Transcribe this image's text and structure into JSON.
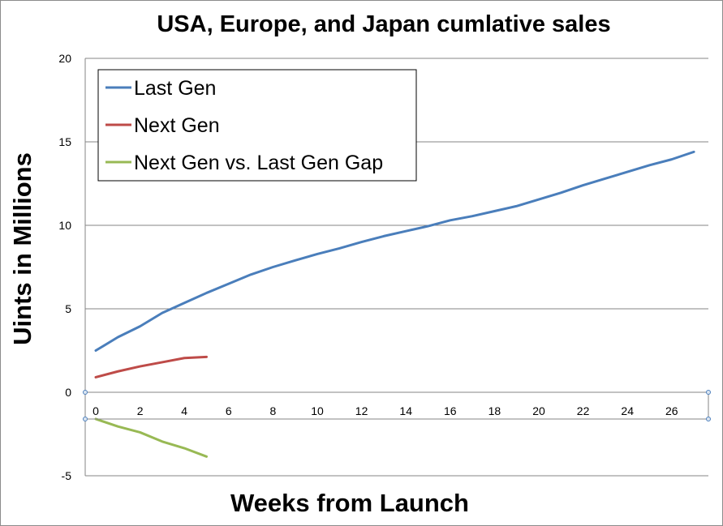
{
  "chart_data": {
    "type": "line",
    "title": "USA, Europe, and Japan cumlative sales",
    "xlabel": "Weeks from Launch",
    "ylabel": "Uints in Millions",
    "xlim": [
      0,
      28
    ],
    "ylim": [
      -5,
      20
    ],
    "x_ticks": [
      "0",
      "2",
      "4",
      "6",
      "8",
      "10",
      "12",
      "14",
      "16",
      "18",
      "20",
      "22",
      "24",
      "26"
    ],
    "y_ticks": [
      "-5",
      "0",
      "5",
      "10",
      "15",
      "20"
    ],
    "grid": "horizontal",
    "legend_position": "top-left",
    "series": [
      {
        "name": "Last Gen",
        "color": "#4a7ebb",
        "x": [
          0,
          1,
          2,
          3,
          4,
          5,
          6,
          7,
          8,
          9,
          10,
          11,
          12,
          13,
          14,
          15,
          16,
          17,
          18,
          19,
          20,
          21,
          22,
          23,
          24,
          25,
          26,
          27
        ],
        "values": [
          2.5,
          3.3,
          3.95,
          4.75,
          5.35,
          5.95,
          6.5,
          7.05,
          7.5,
          7.9,
          8.28,
          8.62,
          9.0,
          9.35,
          9.65,
          9.95,
          10.3,
          10.55,
          10.85,
          11.15,
          11.55,
          11.95,
          12.4,
          12.8,
          13.2,
          13.6,
          13.95,
          14.4
        ]
      },
      {
        "name": "Next Gen",
        "color": "#be4b48",
        "x": [
          0,
          1,
          2,
          3,
          4,
          5
        ],
        "values": [
          0.9,
          1.25,
          1.55,
          1.8,
          2.05,
          2.12
        ]
      },
      {
        "name": "Next Gen vs. Last Gen Gap",
        "color": "#98b954",
        "x": [
          0,
          1,
          2,
          3,
          4,
          5
        ],
        "values": [
          -1.6,
          -2.05,
          -2.4,
          -2.95,
          -3.35,
          -3.85
        ]
      }
    ]
  }
}
